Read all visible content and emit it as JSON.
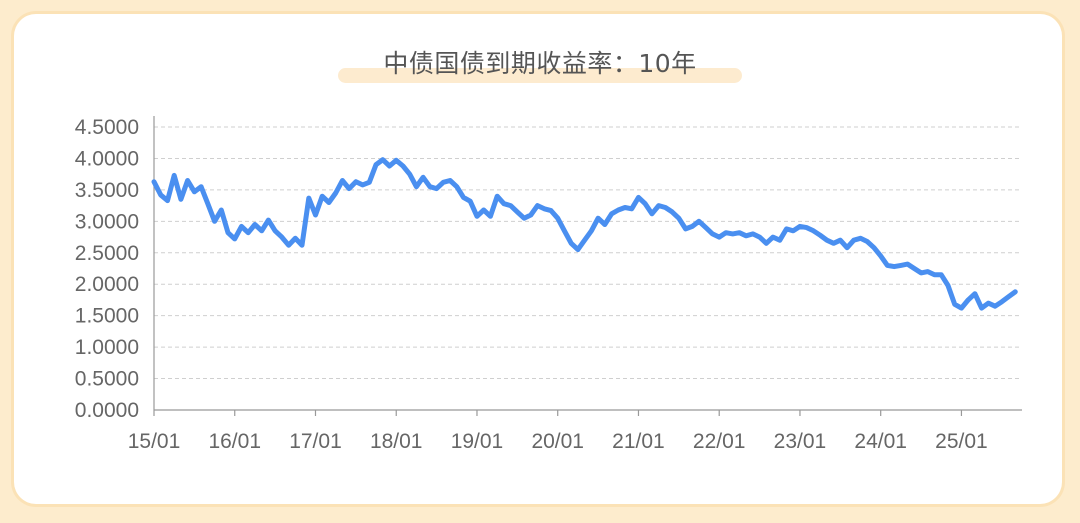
{
  "chart_data": {
    "type": "line",
    "title": "中债国债到期收益率：10年",
    "xlabel": "",
    "ylabel": "",
    "ylim": [
      0,
      4.5
    ],
    "yticks": [
      "0.0000",
      "0.5000",
      "1.0000",
      "1.5000",
      "2.0000",
      "2.5000",
      "3.0000",
      "3.5000",
      "4.0000",
      "4.5000"
    ],
    "xticks": [
      "15/01",
      "16/01",
      "17/01",
      "18/01",
      "19/01",
      "20/01",
      "21/01",
      "22/01",
      "23/01",
      "24/01",
      "25/01"
    ],
    "grid": true,
    "line_color": "#4a8ff0",
    "series": [
      {
        "name": "",
        "points": [
          [
            "2015-01",
            3.63
          ],
          [
            "2015-02",
            3.42
          ],
          [
            "2015-03",
            3.33
          ],
          [
            "2015-04",
            3.73
          ],
          [
            "2015-05",
            3.35
          ],
          [
            "2015-06",
            3.65
          ],
          [
            "2015-07",
            3.47
          ],
          [
            "2015-08",
            3.55
          ],
          [
            "2015-09",
            3.28
          ],
          [
            "2015-10",
            3.0
          ],
          [
            "2015-11",
            3.18
          ],
          [
            "2015-12",
            2.82
          ],
          [
            "2016-01",
            2.72
          ],
          [
            "2016-02",
            2.92
          ],
          [
            "2016-03",
            2.82
          ],
          [
            "2016-04",
            2.95
          ],
          [
            "2016-05",
            2.85
          ],
          [
            "2016-06",
            3.02
          ],
          [
            "2016-07",
            2.85
          ],
          [
            "2016-08",
            2.75
          ],
          [
            "2016-09",
            2.62
          ],
          [
            "2016-10",
            2.73
          ],
          [
            "2016-11",
            2.62
          ],
          [
            "2016-12",
            3.37
          ],
          [
            "2017-01",
            3.1
          ],
          [
            "2017-02",
            3.4
          ],
          [
            "2017-03",
            3.3
          ],
          [
            "2017-04",
            3.45
          ],
          [
            "2017-05",
            3.65
          ],
          [
            "2017-06",
            3.52
          ],
          [
            "2017-07",
            3.63
          ],
          [
            "2017-08",
            3.58
          ],
          [
            "2017-09",
            3.62
          ],
          [
            "2017-10",
            3.9
          ],
          [
            "2017-11",
            3.98
          ],
          [
            "2017-12",
            3.88
          ],
          [
            "2018-01",
            3.97
          ],
          [
            "2018-02",
            3.88
          ],
          [
            "2018-03",
            3.75
          ],
          [
            "2018-04",
            3.55
          ],
          [
            "2018-05",
            3.7
          ],
          [
            "2018-06",
            3.55
          ],
          [
            "2018-07",
            3.52
          ],
          [
            "2018-08",
            3.62
          ],
          [
            "2018-09",
            3.65
          ],
          [
            "2018-10",
            3.55
          ],
          [
            "2018-11",
            3.38
          ],
          [
            "2018-12",
            3.32
          ],
          [
            "2019-01",
            3.08
          ],
          [
            "2019-02",
            3.18
          ],
          [
            "2019-03",
            3.08
          ],
          [
            "2019-04",
            3.4
          ],
          [
            "2019-05",
            3.28
          ],
          [
            "2019-06",
            3.25
          ],
          [
            "2019-07",
            3.15
          ],
          [
            "2019-08",
            3.05
          ],
          [
            "2019-09",
            3.1
          ],
          [
            "2019-10",
            3.25
          ],
          [
            "2019-11",
            3.2
          ],
          [
            "2019-12",
            3.17
          ],
          [
            "2020-01",
            3.05
          ],
          [
            "2020-02",
            2.85
          ],
          [
            "2020-03",
            2.65
          ],
          [
            "2020-04",
            2.55
          ],
          [
            "2020-05",
            2.7
          ],
          [
            "2020-06",
            2.85
          ],
          [
            "2020-07",
            3.05
          ],
          [
            "2020-08",
            2.95
          ],
          [
            "2020-09",
            3.12
          ],
          [
            "2020-10",
            3.18
          ],
          [
            "2020-11",
            3.22
          ],
          [
            "2020-12",
            3.2
          ],
          [
            "2021-01",
            3.38
          ],
          [
            "2021-02",
            3.28
          ],
          [
            "2021-03",
            3.12
          ],
          [
            "2021-04",
            3.25
          ],
          [
            "2021-05",
            3.22
          ],
          [
            "2021-06",
            3.15
          ],
          [
            "2021-07",
            3.05
          ],
          [
            "2021-08",
            2.88
          ],
          [
            "2021-09",
            2.92
          ],
          [
            "2021-10",
            3.0
          ],
          [
            "2021-11",
            2.9
          ],
          [
            "2021-12",
            2.8
          ],
          [
            "2022-01",
            2.75
          ],
          [
            "2022-02",
            2.82
          ],
          [
            "2022-03",
            2.8
          ],
          [
            "2022-04",
            2.82
          ],
          [
            "2022-05",
            2.77
          ],
          [
            "2022-06",
            2.8
          ],
          [
            "2022-07",
            2.75
          ],
          [
            "2022-08",
            2.65
          ],
          [
            "2022-09",
            2.75
          ],
          [
            "2022-10",
            2.7
          ],
          [
            "2022-11",
            2.88
          ],
          [
            "2022-12",
            2.85
          ],
          [
            "2023-01",
            2.92
          ],
          [
            "2023-02",
            2.9
          ],
          [
            "2023-03",
            2.85
          ],
          [
            "2023-04",
            2.78
          ],
          [
            "2023-05",
            2.7
          ],
          [
            "2023-06",
            2.65
          ],
          [
            "2023-07",
            2.7
          ],
          [
            "2023-08",
            2.58
          ],
          [
            "2023-09",
            2.7
          ],
          [
            "2023-10",
            2.73
          ],
          [
            "2023-11",
            2.68
          ],
          [
            "2023-12",
            2.58
          ],
          [
            "2024-01",
            2.45
          ],
          [
            "2024-02",
            2.3
          ],
          [
            "2024-03",
            2.28
          ],
          [
            "2024-04",
            2.3
          ],
          [
            "2024-05",
            2.32
          ],
          [
            "2024-06",
            2.25
          ],
          [
            "2024-07",
            2.18
          ],
          [
            "2024-08",
            2.2
          ],
          [
            "2024-09",
            2.15
          ],
          [
            "2024-10",
            2.15
          ],
          [
            "2024-11",
            1.98
          ],
          [
            "2024-12",
            1.68
          ],
          [
            "2025-01",
            1.62
          ],
          [
            "2025-02",
            1.75
          ],
          [
            "2025-03",
            1.85
          ],
          [
            "2025-04",
            1.62
          ],
          [
            "2025-05",
            1.7
          ],
          [
            "2025-06",
            1.65
          ],
          [
            "2025-07",
            1.72
          ],
          [
            "2025-08",
            1.8
          ],
          [
            "2025-09",
            1.88
          ]
        ]
      }
    ]
  }
}
